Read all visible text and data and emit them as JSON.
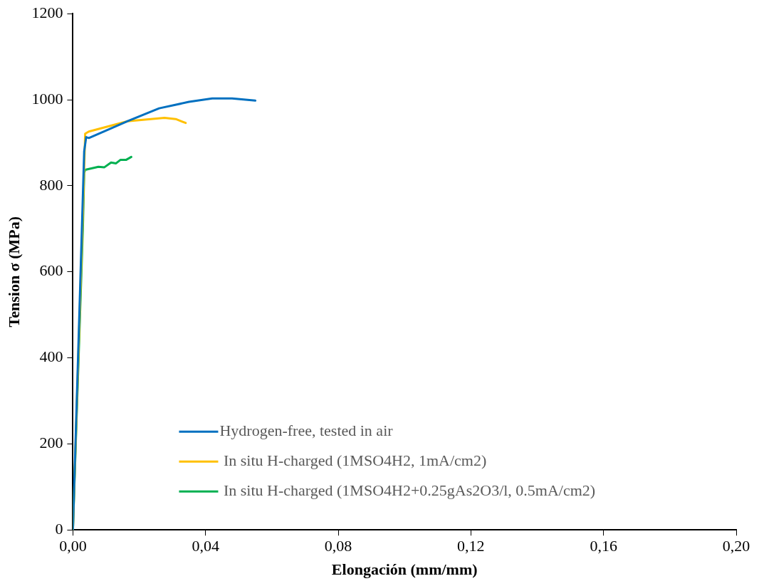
{
  "chart_data": {
    "type": "line",
    "xlabel": "Elongación (mm/mm)",
    "ylabel": "Tension σ (MPa)",
    "xlim": [
      0,
      0.2
    ],
    "ylim": [
      0,
      1200
    ],
    "xticks": [
      {
        "value": 0,
        "label": "0,00"
      },
      {
        "value": 0.04,
        "label": "0,04"
      },
      {
        "value": 0.08,
        "label": "0,08"
      },
      {
        "value": 0.12,
        "label": "0,12"
      },
      {
        "value": 0.16,
        "label": "0,16"
      },
      {
        "value": 0.2,
        "label": "0,20"
      }
    ],
    "yticks": [
      0,
      200,
      400,
      600,
      800,
      1000,
      1200
    ],
    "grid": false,
    "legend": "bottom",
    "marker": "none",
    "line_style": "solid",
    "series": [
      {
        "name": "Hydrogen-free, tested in air",
        "color": "#0070c0",
        "x": [
          0,
          0.0034,
          0.004,
          0.0048,
          0.009,
          0.0165,
          0.026,
          0.035,
          0.042,
          0.048,
          0.055
        ],
        "values": [
          0,
          880,
          913,
          911,
          925,
          950,
          980,
          995,
          1003,
          1003,
          998
        ]
      },
      {
        "name": " In situ H-charged (1MSO4H2, 1mA/cm2)",
        "color": "#ffc000",
        "x": [
          0,
          0.0031,
          0.0037,
          0.0048,
          0.0165,
          0.0276,
          0.031,
          0.034
        ],
        "values": [
          0,
          760,
          921,
          926,
          950,
          958,
          955,
          946
        ]
      },
      {
        "name": " In situ H-charged (1MSO4H2+0.25gAs2O3/l, 0.5mA/cm2)",
        "color": "#00b050",
        "x": [
          0,
          0.003,
          0.0034,
          0.0037,
          0.0077,
          0.0095,
          0.0115,
          0.013,
          0.0143,
          0.016,
          0.0176
        ],
        "values": [
          0,
          700,
          830,
          837,
          844,
          843,
          854,
          852,
          860,
          860,
          867
        ]
      }
    ]
  }
}
